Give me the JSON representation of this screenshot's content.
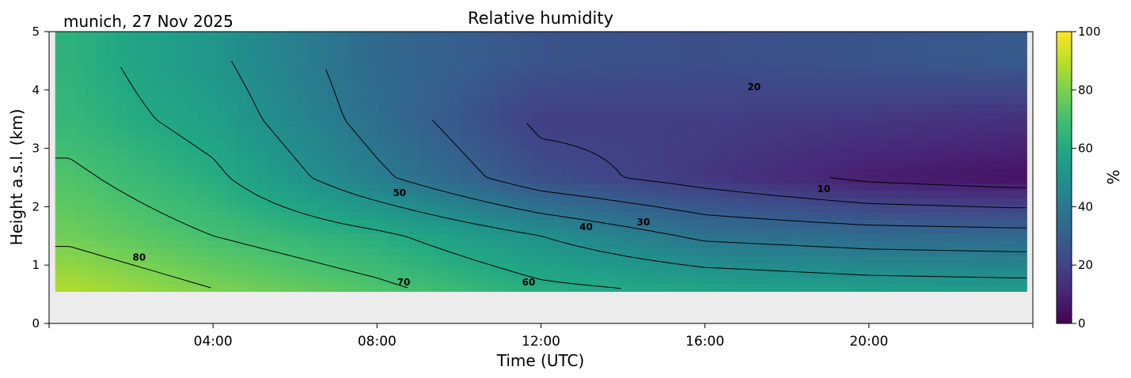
{
  "chart_data": {
    "type": "heatmap",
    "title": "Relative humidity",
    "location_label": "munich, 27 Nov 2025",
    "xlabel": "Time (UTC)",
    "ylabel": "Height a.s.l. (km)",
    "x_units": "hours UTC",
    "xlim": [
      0,
      24
    ],
    "ylim": [
      0,
      5
    ],
    "x_ticks": [
      {
        "value": 4,
        "label": "04:00"
      },
      {
        "value": 8,
        "label": "08:00"
      },
      {
        "value": 12,
        "label": "12:00"
      },
      {
        "value": 16,
        "label": "16:00"
      },
      {
        "value": 20,
        "label": "20:00"
      }
    ],
    "y_ticks": [
      {
        "value": 0,
        "label": "0"
      },
      {
        "value": 1,
        "label": "1"
      },
      {
        "value": 2,
        "label": "2"
      },
      {
        "value": 3,
        "label": "3"
      },
      {
        "value": 4,
        "label": "4"
      },
      {
        "value": 5,
        "label": "5"
      }
    ],
    "data_start_height_km": 0.55,
    "data_time_range": [
      0.15,
      23.85
    ],
    "colorbar": {
      "label": "%",
      "colormap": "viridis",
      "range": [
        0,
        100
      ],
      "ticks": [
        {
          "value": 0,
          "label": "0"
        },
        {
          "value": 20,
          "label": "20"
        },
        {
          "value": 40,
          "label": "40"
        },
        {
          "value": 60,
          "label": "60"
        },
        {
          "value": 80,
          "label": "80"
        },
        {
          "value": 100,
          "label": "100"
        }
      ]
    },
    "contour_levels": [
      10,
      20,
      30,
      40,
      50,
      60,
      70,
      80
    ],
    "contour_labels": [
      {
        "text": "80",
        "time": 2.2,
        "height": 1.08
      },
      {
        "text": "70",
        "time": 8.65,
        "height": 0.65
      },
      {
        "text": "60",
        "time": 11.7,
        "height": 0.65
      },
      {
        "text": "50",
        "time": 8.55,
        "height": 2.18
      },
      {
        "text": "40",
        "time": 13.1,
        "height": 1.6
      },
      {
        "text": "30",
        "time": 14.5,
        "height": 1.68
      },
      {
        "text": "20",
        "time": 17.2,
        "height": 4.0
      },
      {
        "text": "10",
        "time": 18.9,
        "height": 2.25
      }
    ],
    "rh_profile_samples": [
      {
        "time": 0.5,
        "rh_at_km": {
          "0.6": 88,
          "1.5": 78,
          "2.5": 72,
          "3.5": 66,
          "4.5": 64
        }
      },
      {
        "time": 4.0,
        "rh_at_km": {
          "0.6": 80,
          "1.5": 70,
          "2.5": 62,
          "3.5": 56,
          "4.5": 52
        }
      },
      {
        "time": 8.0,
        "rh_at_km": {
          "0.6": 72,
          "1.5": 62,
          "2.5": 42,
          "3.5": 36,
          "4.5": 34
        }
      },
      {
        "time": 12.0,
        "rh_at_km": {
          "0.6": 62,
          "1.5": 50,
          "2.5": 24,
          "3.5": 18,
          "4.5": 26
        }
      },
      {
        "time": 16.0,
        "rh_at_km": {
          "0.6": 58,
          "1.5": 38,
          "2.5": 16,
          "3.5": 18,
          "4.5": 24
        }
      },
      {
        "time": 20.0,
        "rh_at_km": {
          "0.6": 55,
          "1.5": 35,
          "2.5": 8,
          "3.5": 16,
          "4.5": 26
        }
      },
      {
        "time": 23.5,
        "rh_at_km": {
          "0.6": 54,
          "1.5": 34,
          "2.5": 5,
          "3.5": 14,
          "4.5": 28
        }
      }
    ]
  }
}
